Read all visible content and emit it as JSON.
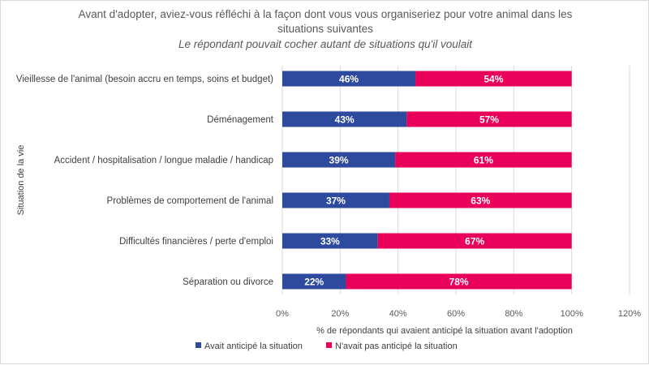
{
  "chart_data": {
    "type": "bar",
    "orientation": "horizontal",
    "stacked": true,
    "title": "Avant d'adopter, aviez-vous réfléchi à la façon dont vous vous organiseriez pour votre animal dans les situations suivantes",
    "title_line1": "Avant d'adopter, aviez-vous réfléchi à la façon dont vous vous organiseriez pour votre animal dans les",
    "title_line2": "situations suivantes",
    "subtitle": "Le répondant pouvait cocher autant de situations qu'il voulait",
    "xlabel": "% de répondants qui avaient anticipé la situation avant l'adoption",
    "ylabel": "Situation de la vie",
    "xlim": [
      0,
      120
    ],
    "x_ticks": [
      "0%",
      "20%",
      "40%",
      "60%",
      "80%",
      "100%",
      "120%"
    ],
    "gridlines": true,
    "legend_position": "bottom",
    "categories": [
      "Vieillesse de l'animal (besoin accru en temps, soins et budget)",
      "Déménagement",
      "Accident / hospitalisation / longue maladie / handicap",
      "Problèmes de comportement de l'animal",
      "Difficultés financières / perte d'emploi",
      "Séparation ou divorce"
    ],
    "series": [
      {
        "name": "Avait anticipé la situation",
        "color": "#2e4a9e",
        "values": [
          46,
          43,
          39,
          37,
          33,
          22
        ],
        "labels": [
          "46%",
          "43%",
          "39%",
          "37%",
          "33%",
          "22%"
        ]
      },
      {
        "name": "N'avait pas anticipé la situation",
        "color": "#e8005a",
        "values": [
          54,
          57,
          61,
          63,
          67,
          78
        ],
        "labels": [
          "54%",
          "57%",
          "61%",
          "63%",
          "67%",
          "78%"
        ]
      }
    ]
  }
}
